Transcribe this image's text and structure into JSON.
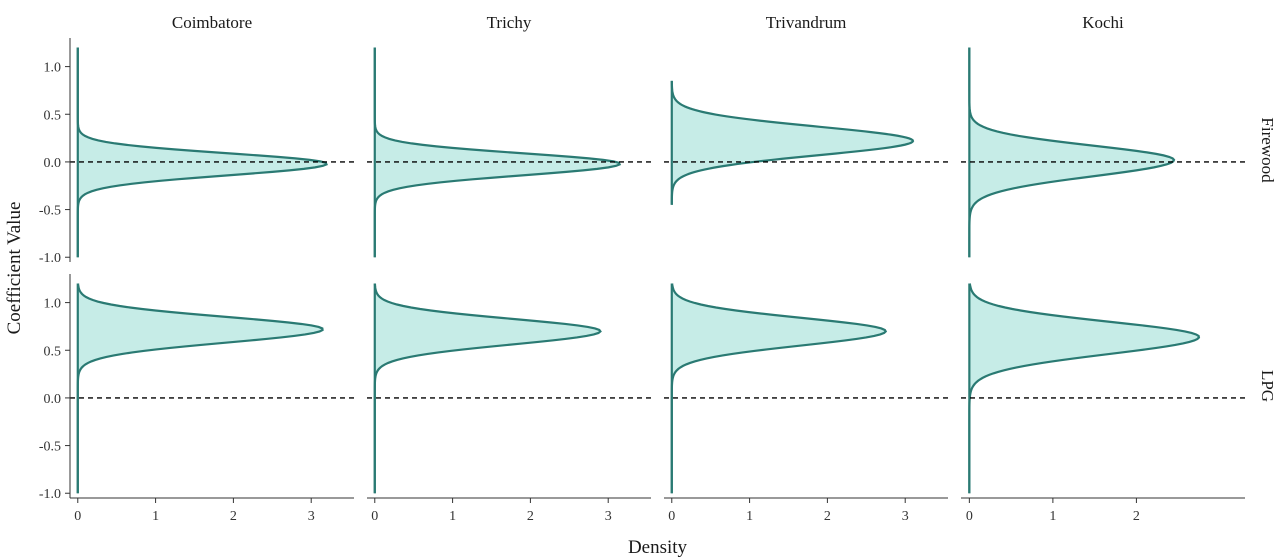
{
  "chart_data": {
    "type": "area",
    "xlabel": "Density",
    "ylabel": "Coefficient Value",
    "columns": [
      "Coimbatore",
      "Trichy",
      "Trivandrum",
      "Kochi"
    ],
    "rows": [
      "Firewood",
      "LPG"
    ],
    "ylim": [
      -1.05,
      1.3
    ],
    "yticks": [
      -1.0,
      -0.5,
      0.0,
      0.5,
      1.0
    ],
    "ytick_labels": [
      "-1.0",
      "-0.5",
      "0.0",
      "0.5",
      "1.0"
    ],
    "xlims": [
      [
        -0.1,
        3.55
      ],
      [
        -0.1,
        3.55
      ],
      [
        -0.1,
        3.55
      ],
      [
        -0.1,
        3.3
      ]
    ],
    "xticks": [
      [
        0,
        1,
        2,
        3
      ],
      [
        0,
        1,
        2,
        3
      ],
      [
        0,
        1,
        2,
        3
      ],
      [
        0,
        1,
        2
      ]
    ],
    "reference_line_y": 0.0,
    "fill_color": "#c6ece7",
    "line_color": "#2a7a73",
    "grid": false,
    "panels": [
      {
        "column": "Coimbatore",
        "row": "Firewood",
        "mode": -0.02,
        "sigma_low": 0.12,
        "sigma_high": 0.11,
        "peak_density": 3.2,
        "range": [
          -1.0,
          1.2
        ]
      },
      {
        "column": "Trichy",
        "row": "Firewood",
        "mode": -0.02,
        "sigma_low": 0.12,
        "sigma_high": 0.11,
        "peak_density": 3.15,
        "range": [
          -1.0,
          1.2
        ]
      },
      {
        "column": "Trivandrum",
        "row": "Firewood",
        "mode": 0.22,
        "sigma_low": 0.15,
        "sigma_high": 0.15,
        "peak_density": 3.1,
        "range": [
          -0.45,
          0.85
        ]
      },
      {
        "column": "Kochi",
        "row": "Firewood",
        "mode": 0.02,
        "sigma_low": 0.17,
        "sigma_high": 0.15,
        "peak_density": 2.45,
        "range": [
          -1.0,
          1.2
        ]
      },
      {
        "column": "Coimbatore",
        "row": "LPG",
        "mode": 0.72,
        "sigma_low": 0.14,
        "sigma_high": 0.13,
        "peak_density": 3.15,
        "range": [
          -1.0,
          1.2
        ]
      },
      {
        "column": "Trichy",
        "row": "LPG",
        "mode": 0.7,
        "sigma_low": 0.14,
        "sigma_high": 0.13,
        "peak_density": 2.9,
        "range": [
          -1.0,
          1.2
        ]
      },
      {
        "column": "Trivandrum",
        "row": "LPG",
        "mode": 0.7,
        "sigma_low": 0.15,
        "sigma_high": 0.14,
        "peak_density": 2.75,
        "range": [
          -1.0,
          1.2
        ]
      },
      {
        "column": "Kochi",
        "row": "LPG",
        "mode": 0.64,
        "sigma_low": 0.18,
        "sigma_high": 0.16,
        "peak_density": 2.75,
        "range": [
          -1.0,
          1.2
        ]
      }
    ]
  }
}
